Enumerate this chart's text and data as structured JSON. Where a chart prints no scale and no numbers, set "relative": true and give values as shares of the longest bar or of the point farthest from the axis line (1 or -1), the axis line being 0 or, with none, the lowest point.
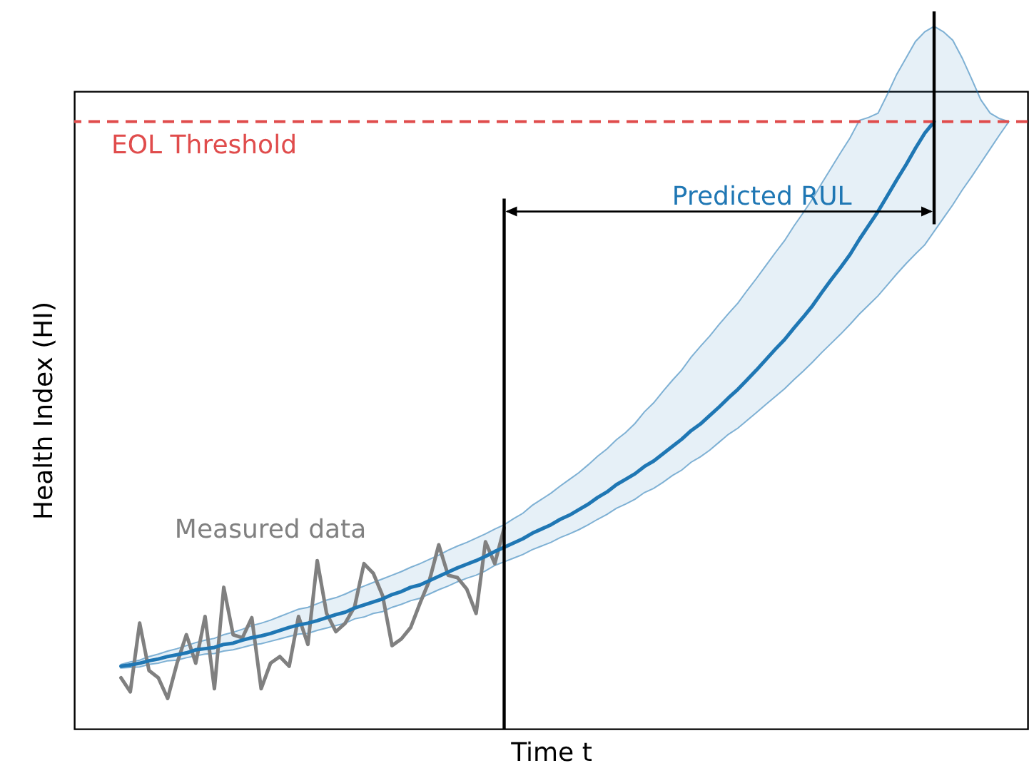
{
  "chart_data": {
    "type": "line",
    "relative": true,
    "xlabel": "Time t",
    "ylabel": "Health Index (HI)",
    "tick_labels": false,
    "categories": [
      null,
      null,
      null,
      null,
      null,
      null,
      null,
      null,
      null,
      null,
      null,
      null,
      null,
      null,
      null,
      null,
      null,
      null,
      null,
      null,
      null,
      null,
      null,
      null,
      null,
      null,
      null,
      null,
      null,
      null,
      null,
      null,
      null,
      null,
      null,
      null,
      null,
      null,
      null,
      null,
      null,
      null,
      null,
      null,
      null,
      null,
      null,
      null,
      null,
      null,
      null,
      null,
      null,
      null,
      null,
      null,
      null,
      null,
      null,
      null,
      null,
      null,
      null,
      null,
      null,
      null,
      null,
      null,
      null,
      null,
      null,
      null,
      null,
      null,
      null,
      null,
      null,
      null,
      null,
      null,
      null,
      null,
      null,
      null,
      null,
      null,
      null,
      null,
      null,
      null,
      null,
      null,
      null,
      null,
      null,
      null,
      null,
      null,
      null,
      null,
      null,
      null,
      null
    ],
    "series": [
      {
        "name": "Measured data",
        "color": "#808080",
        "values": [
          null,
          null,
          null,
          null,
          null,
          0.084,
          0.061,
          0.174,
          0.096,
          0.084,
          0.05,
          0.108,
          0.155,
          0.108,
          0.185,
          0.066,
          0.233,
          0.155,
          0.15,
          0.183,
          0.066,
          0.108,
          0.119,
          0.103,
          0.185,
          0.139,
          0.277,
          0.19,
          0.16,
          0.174,
          0.201,
          0.272,
          0.256,
          0.219,
          0.137,
          0.148,
          0.167,
          0.207,
          0.244,
          0.303,
          0.253,
          0.249,
          0.23,
          0.19,
          0.308,
          0.272,
          0.331,
          null,
          null,
          null,
          null,
          null,
          null,
          null,
          null,
          null,
          null,
          null,
          null,
          null,
          null,
          null,
          null,
          null,
          null,
          null,
          null,
          null,
          null,
          null,
          null,
          null,
          null,
          null,
          null,
          null,
          null,
          null,
          null,
          null,
          null,
          null,
          null,
          null,
          null,
          null,
          null,
          null,
          null,
          null,
          null,
          null,
          null,
          null,
          null,
          null,
          null,
          null,
          null,
          null,
          null,
          null,
          null
        ]
      },
      {
        "color": "#1f77b4",
        "values": [
          null,
          null,
          null,
          null,
          null,
          0.103,
          0.105,
          0.108,
          0.112,
          0.115,
          0.119,
          0.122,
          0.125,
          0.13,
          0.132,
          0.134,
          0.139,
          0.141,
          0.146,
          0.15,
          0.153,
          0.157,
          0.162,
          0.167,
          0.171,
          0.174,
          0.178,
          0.183,
          0.188,
          0.192,
          0.199,
          0.204,
          0.209,
          0.214,
          0.221,
          0.226,
          0.233,
          0.237,
          0.244,
          0.251,
          0.258,
          0.265,
          0.271,
          0.277,
          0.284,
          0.292,
          0.299,
          0.306,
          0.313,
          0.322,
          0.329,
          0.336,
          0.345,
          0.352,
          0.361,
          0.37,
          0.381,
          0.39,
          0.402,
          0.411,
          0.42,
          0.432,
          0.441,
          0.453,
          0.465,
          0.477,
          0.491,
          0.502,
          0.516,
          0.53,
          0.545,
          0.559,
          0.575,
          0.591,
          0.608,
          0.625,
          0.641,
          0.66,
          0.678,
          0.697,
          0.719,
          0.74,
          0.76,
          0.781,
          0.806,
          0.829,
          0.852,
          0.878,
          0.904,
          0.929,
          0.956,
          0.981,
          1.0,
          null,
          null,
          null,
          null,
          null,
          null,
          null,
          null,
          null,
          null
        ],
        "lower": [
          null,
          null,
          null,
          null,
          null,
          0.1,
          0.101,
          0.102,
          0.106,
          0.108,
          0.112,
          0.113,
          0.117,
          0.12,
          0.123,
          0.124,
          0.128,
          0.13,
          0.134,
          0.138,
          0.14,
          0.144,
          0.148,
          0.152,
          0.156,
          0.157,
          0.162,
          0.166,
          0.17,
          0.174,
          0.181,
          0.184,
          0.19,
          0.193,
          0.2,
          0.205,
          0.211,
          0.215,
          0.222,
          0.229,
          0.235,
          0.242,
          0.248,
          0.253,
          0.26,
          0.269,
          0.275,
          0.281,
          0.287,
          0.295,
          0.301,
          0.307,
          0.315,
          0.321,
          0.328,
          0.336,
          0.345,
          0.353,
          0.363,
          0.37,
          0.378,
          0.389,
          0.396,
          0.406,
          0.417,
          0.426,
          0.439,
          0.448,
          0.459,
          0.472,
          0.485,
          0.495,
          0.508,
          0.521,
          0.534,
          0.547,
          0.56,
          0.575,
          0.589,
          0.604,
          0.62,
          0.635,
          0.65,
          0.666,
          0.683,
          0.698,
          0.713,
          0.731,
          0.749,
          0.766,
          0.782,
          0.797,
          0.819,
          0.841,
          0.863,
          0.887,
          0.909,
          0.932,
          0.955,
          0.978,
          1.0,
          null,
          null
        ],
        "upper": [
          null,
          null,
          null,
          null,
          null,
          0.106,
          0.11,
          0.113,
          0.119,
          0.123,
          0.128,
          0.132,
          0.137,
          0.142,
          0.146,
          0.149,
          0.155,
          0.159,
          0.164,
          0.17,
          0.174,
          0.179,
          0.185,
          0.191,
          0.197,
          0.2,
          0.206,
          0.212,
          0.216,
          0.222,
          0.229,
          0.235,
          0.241,
          0.247,
          0.253,
          0.259,
          0.266,
          0.272,
          0.279,
          0.286,
          0.294,
          0.301,
          0.307,
          0.314,
          0.321,
          0.329,
          0.336,
          0.346,
          0.355,
          0.368,
          0.378,
          0.388,
          0.4,
          0.411,
          0.422,
          0.435,
          0.449,
          0.461,
          0.476,
          0.488,
          0.503,
          0.522,
          0.537,
          0.556,
          0.574,
          0.591,
          0.612,
          0.63,
          0.647,
          0.666,
          0.684,
          0.701,
          0.722,
          0.742,
          0.763,
          0.784,
          0.804,
          0.828,
          0.85,
          0.873,
          0.899,
          0.924,
          0.949,
          0.973,
          1.002,
          1.007,
          1.014,
          1.045,
          1.078,
          1.105,
          1.132,
          1.148,
          1.157,
          1.148,
          1.134,
          1.105,
          1.071,
          1.036,
          1.014,
          1.005,
          1.0,
          null,
          null
        ]
      }
    ],
    "ref_lines": [
      {
        "axis": "y",
        "value": 1.0,
        "label": "EOL Threshold",
        "color": "#e04c4c",
        "line_style": "dashed"
      }
    ],
    "annotations": [
      "Predicted RUL"
    ]
  }
}
